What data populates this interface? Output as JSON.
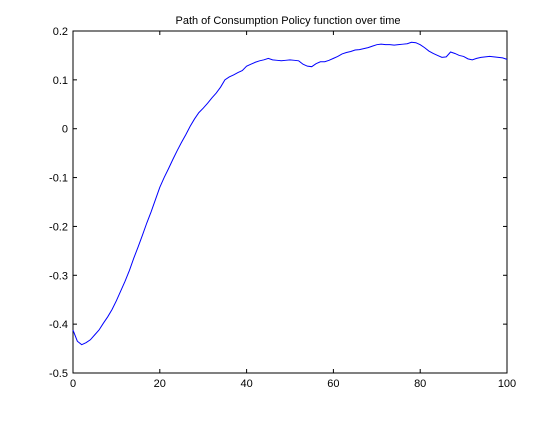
{
  "chart_data": {
    "type": "line",
    "title": "Path of Consumption Policy function over time",
    "xlabel": "",
    "ylabel": "",
    "xlim": [
      0,
      100
    ],
    "ylim": [
      -0.5,
      0.2
    ],
    "grid": false,
    "line_color": "#0000ff",
    "x_ticks": [
      {
        "value": 0,
        "label": "0"
      },
      {
        "value": 20,
        "label": "20"
      },
      {
        "value": 40,
        "label": "40"
      },
      {
        "value": 60,
        "label": "60"
      },
      {
        "value": 80,
        "label": "80"
      },
      {
        "value": 100,
        "label": "100"
      }
    ],
    "y_ticks": [
      {
        "value": 0.2,
        "label": "0.2"
      },
      {
        "value": 0.1,
        "label": "0.1"
      },
      {
        "value": 0,
        "label": "0"
      },
      {
        "value": -0.1,
        "label": "-0.1"
      },
      {
        "value": -0.2,
        "label": "-0.2"
      },
      {
        "value": -0.3,
        "label": "-0.3"
      },
      {
        "value": -0.4,
        "label": "-0.4"
      },
      {
        "value": -0.5,
        "label": "-0.5"
      }
    ],
    "series": [
      {
        "x": [
          0,
          1,
          2,
          3,
          4,
          5,
          6,
          7,
          8,
          9,
          10,
          11,
          12,
          13,
          14,
          15,
          16,
          17,
          18,
          19,
          20,
          21,
          22,
          23,
          24,
          25,
          26,
          27,
          28,
          29,
          30,
          31,
          32,
          33,
          34,
          35,
          36,
          37,
          38,
          39,
          40,
          41,
          42,
          43,
          44,
          45,
          46,
          47,
          48,
          49,
          50,
          51,
          52,
          53,
          54,
          55,
          56,
          57,
          58,
          59,
          60,
          61,
          62,
          63,
          64,
          65,
          66,
          67,
          68,
          69,
          70,
          71,
          72,
          73,
          74,
          75,
          76,
          77,
          78,
          79,
          80,
          81,
          82,
          83,
          84,
          85,
          86,
          87,
          88,
          89,
          90,
          91,
          92,
          93,
          94,
          95,
          96,
          97,
          98,
          99,
          100
        ],
        "y": [
          -0.412,
          -0.435,
          -0.442,
          -0.438,
          -0.432,
          -0.422,
          -0.412,
          -0.398,
          -0.385,
          -0.37,
          -0.352,
          -0.332,
          -0.312,
          -0.29,
          -0.265,
          -0.242,
          -0.218,
          -0.193,
          -0.17,
          -0.145,
          -0.12,
          -0.1,
          -0.082,
          -0.063,
          -0.045,
          -0.028,
          -0.012,
          0.005,
          0.02,
          0.033,
          0.042,
          0.052,
          0.063,
          0.073,
          0.085,
          0.1,
          0.106,
          0.11,
          0.115,
          0.119,
          0.128,
          0.132,
          0.136,
          0.139,
          0.141,
          0.144,
          0.141,
          0.14,
          0.139,
          0.14,
          0.141,
          0.14,
          0.139,
          0.132,
          0.128,
          0.127,
          0.133,
          0.137,
          0.137,
          0.14,
          0.144,
          0.148,
          0.153,
          0.156,
          0.158,
          0.161,
          0.162,
          0.164,
          0.166,
          0.169,
          0.172,
          0.173,
          0.172,
          0.172,
          0.171,
          0.172,
          0.173,
          0.174,
          0.177,
          0.176,
          0.172,
          0.166,
          0.159,
          0.154,
          0.15,
          0.146,
          0.147,
          0.157,
          0.154,
          0.15,
          0.148,
          0.143,
          0.141,
          0.144,
          0.146,
          0.147,
          0.148,
          0.147,
          0.146,
          0.145,
          0.142
        ]
      }
    ]
  }
}
